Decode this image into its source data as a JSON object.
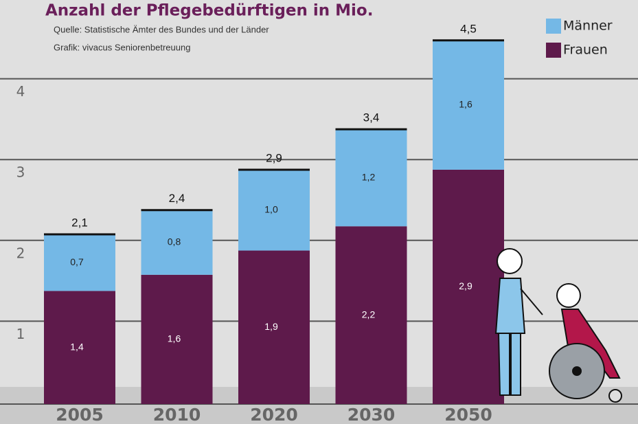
{
  "chart_data": {
    "type": "stacked_bar",
    "title": "Anzahl der Pflegebedürftigen in Mio.",
    "subtitle": [
      "Quelle: Statistische Ämter des Bundes und der Länder",
      "Grafik:  vivacus Seniorenbetreuung"
    ],
    "categories": [
      "2005",
      "2010",
      "2020",
      "2030",
      "2050"
    ],
    "series": [
      {
        "name": "Frauen",
        "color": "#5e1a4b",
        "values": [
          1.4,
          1.6,
          1.9,
          2.2,
          2.9
        ],
        "value_labels": [
          "1,4",
          "1,6",
          "1,9",
          "2,2",
          "2,9"
        ]
      },
      {
        "name": "Männer",
        "color": "#74b8e6",
        "values": [
          0.7,
          0.8,
          1.0,
          1.2,
          1.6
        ],
        "value_labels": [
          "0,7",
          "0,8",
          "1,0",
          "1,2",
          "1,6"
        ]
      }
    ],
    "totals": [
      2.1,
      2.4,
      2.9,
      3.4,
      4.5
    ],
    "total_labels": [
      "2,1",
      "2,4",
      "2,9",
      "3,4",
      "4,5"
    ],
    "ylim": [
      0,
      5
    ],
    "yticks": [
      1,
      2,
      3,
      4
    ],
    "grid": true
  }
}
